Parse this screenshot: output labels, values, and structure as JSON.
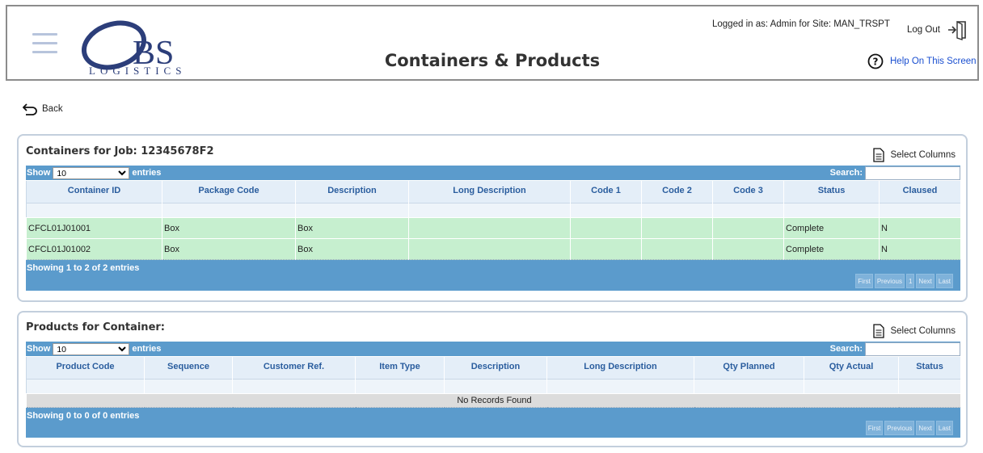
{
  "header": {
    "logo_text": "BS",
    "logo_sub": "LOGISTICS",
    "page_title": "Containers & Products",
    "login_info": "Logged in as: Admin for Site: MAN_TRSPT",
    "logout_label": "Log Out",
    "help_label": "Help On This Screen"
  },
  "nav": {
    "back_label": "Back"
  },
  "containers": {
    "title": "Containers for Job: 12345678F2",
    "select_columns": "Select Columns",
    "show_label": "Show",
    "entries_value": "10",
    "entries_label": "entries",
    "search_label": "Search:",
    "columns": [
      "Container ID",
      "Package Code",
      "Description",
      "Long Description",
      "Code 1",
      "Code 2",
      "Code 3",
      "Status",
      "Claused"
    ],
    "rows": [
      [
        "CFCL01J01001",
        "Box",
        "Box",
        "",
        "",
        "",
        "",
        "Complete",
        "N"
      ],
      [
        "CFCL01J01002",
        "Box",
        "Box",
        "",
        "",
        "",
        "",
        "Complete",
        "N"
      ]
    ],
    "info": "Showing 1 to 2 of 2 entries",
    "pager": [
      "First",
      "Previous",
      "1",
      "Next",
      "Last"
    ]
  },
  "products": {
    "title": "Products for Container:",
    "select_columns": "Select Columns",
    "show_label": "Show",
    "entries_value": "10",
    "entries_label": "entries",
    "search_label": "Search:",
    "columns": [
      "Product Code",
      "Sequence",
      "Customer Ref.",
      "Item Type",
      "Description",
      "Long Description",
      "Qty Planned",
      "Qty Actual",
      "Status"
    ],
    "empty_message": "No Records Found",
    "info": "Showing 0 to 0 of 0 entries",
    "pager": [
      "First",
      "Previous",
      "Next",
      "Last"
    ]
  },
  "icons": {
    "menu": "hamburger-icon",
    "logout": "logout-icon",
    "help": "help-circle-icon",
    "back": "back-arrow-icon",
    "select_columns": "document-icon"
  },
  "colors": {
    "table_bar": "#5b9bcc",
    "header_cell": "#e4eef8",
    "row_complete": "#c6efcf",
    "logo": "#2c3e7a"
  }
}
